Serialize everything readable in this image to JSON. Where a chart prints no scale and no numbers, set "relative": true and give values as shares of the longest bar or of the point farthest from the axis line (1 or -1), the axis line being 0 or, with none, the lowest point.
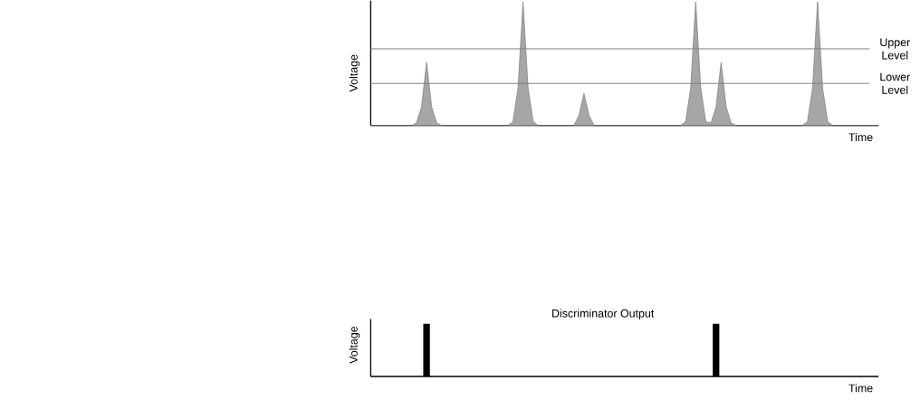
{
  "chart_data": [
    {
      "type": "area",
      "xlabel": "Time",
      "ylabel": "Voltage",
      "relative": true,
      "categories": [
        null,
        null,
        null,
        null,
        null,
        null,
        null,
        null,
        null,
        null,
        null,
        null,
        null,
        null,
        null,
        null,
        null,
        null,
        null,
        null,
        null,
        null,
        null,
        null,
        null,
        null,
        null,
        null,
        null,
        null,
        null,
        null,
        null,
        null,
        null,
        null,
        null,
        null,
        null,
        null,
        null,
        null,
        null,
        null,
        null,
        null,
        null,
        null,
        null,
        null,
        null,
        null,
        null,
        null,
        null,
        null,
        null,
        null,
        null,
        null,
        null,
        null,
        null,
        null,
        null,
        null,
        null,
        null,
        null,
        null,
        null,
        null,
        null,
        null,
        null,
        null,
        null,
        null,
        null,
        null,
        null,
        null,
        null,
        null,
        null,
        null,
        null,
        null,
        null,
        null,
        null,
        null,
        null,
        null,
        null,
        null,
        null,
        null,
        null,
        null,
        null
      ],
      "series": [
        {
          "color": "#a6a6a6",
          "values": [
            0,
            0,
            0,
            0,
            0,
            0,
            0,
            0,
            0,
            0.02,
            0.15,
            0.51,
            0.15,
            0.02,
            0,
            0,
            0,
            0,
            0,
            0,
            0,
            0,
            0,
            0,
            0,
            0,
            0,
            0,
            0.03,
            0.3,
            1,
            0.3,
            0.03,
            0,
            0,
            0,
            0,
            0,
            0,
            0,
            0,
            0.08,
            0.26,
            0.08,
            0,
            0,
            0,
            0,
            0,
            0,
            0,
            0,
            0,
            0,
            0,
            0,
            0,
            0,
            0,
            0,
            0,
            0,
            0.03,
            0.3,
            1,
            0.3,
            0.03,
            0.02,
            0.15,
            0.51,
            0.15,
            0.02,
            0,
            0,
            0,
            0,
            0,
            0,
            0,
            0,
            0,
            0,
            0,
            0,
            0,
            0,
            0.03,
            0.3,
            1,
            0.3,
            0.03,
            0,
            0,
            0,
            0,
            0,
            0,
            0,
            0,
            0,
            0
          ]
        }
      ],
      "ref_lines": [
        {
          "axis": "y",
          "value": 0.62,
          "label": "Upper Level",
          "color": "#808080"
        },
        {
          "axis": "y",
          "value": 0.34,
          "label": "Lower Level",
          "color": "#808080"
        }
      ]
    },
    {
      "type": "bar",
      "title": "Discriminator Output",
      "xlabel": "Time",
      "ylabel": "Voltage",
      "relative": true,
      "categories": [
        null,
        null,
        null,
        null,
        null,
        null,
        null,
        null,
        null,
        null,
        null,
        null,
        null,
        null,
        null,
        null,
        null,
        null,
        null,
        null,
        null,
        null,
        null,
        null,
        null,
        null,
        null,
        null,
        null,
        null,
        null,
        null,
        null,
        null,
        null,
        null,
        null,
        null,
        null,
        null,
        null,
        null,
        null,
        null,
        null,
        null,
        null,
        null,
        null,
        null,
        null,
        null,
        null,
        null,
        null,
        null,
        null,
        null,
        null,
        null,
        null,
        null,
        null,
        null,
        null,
        null,
        null,
        null,
        null,
        null,
        null,
        null,
        null,
        null,
        null,
        null,
        null,
        null,
        null,
        null,
        null,
        null,
        null,
        null,
        null,
        null,
        null,
        null,
        null,
        null,
        null,
        null,
        null,
        null,
        null,
        null,
        null,
        null,
        null,
        null,
        null
      ],
      "series": [
        {
          "color": "#000000",
          "values": [
            null,
            null,
            null,
            null,
            null,
            null,
            null,
            null,
            null,
            null,
            null,
            1,
            null,
            null,
            null,
            null,
            null,
            null,
            null,
            null,
            null,
            null,
            null,
            null,
            null,
            null,
            null,
            null,
            null,
            null,
            null,
            null,
            null,
            null,
            null,
            null,
            null,
            null,
            null,
            null,
            null,
            null,
            null,
            null,
            null,
            null,
            null,
            null,
            null,
            null,
            null,
            null,
            null,
            null,
            null,
            null,
            null,
            null,
            null,
            null,
            null,
            null,
            null,
            null,
            null,
            null,
            null,
            null,
            1,
            null,
            null,
            null,
            null,
            null,
            null,
            null,
            null,
            null,
            null,
            null,
            null,
            null,
            null,
            null,
            null,
            null,
            null,
            null,
            null,
            null,
            null,
            null,
            null,
            null,
            null,
            null,
            null,
            null,
            null,
            null,
            null
          ]
        }
      ]
    }
  ]
}
